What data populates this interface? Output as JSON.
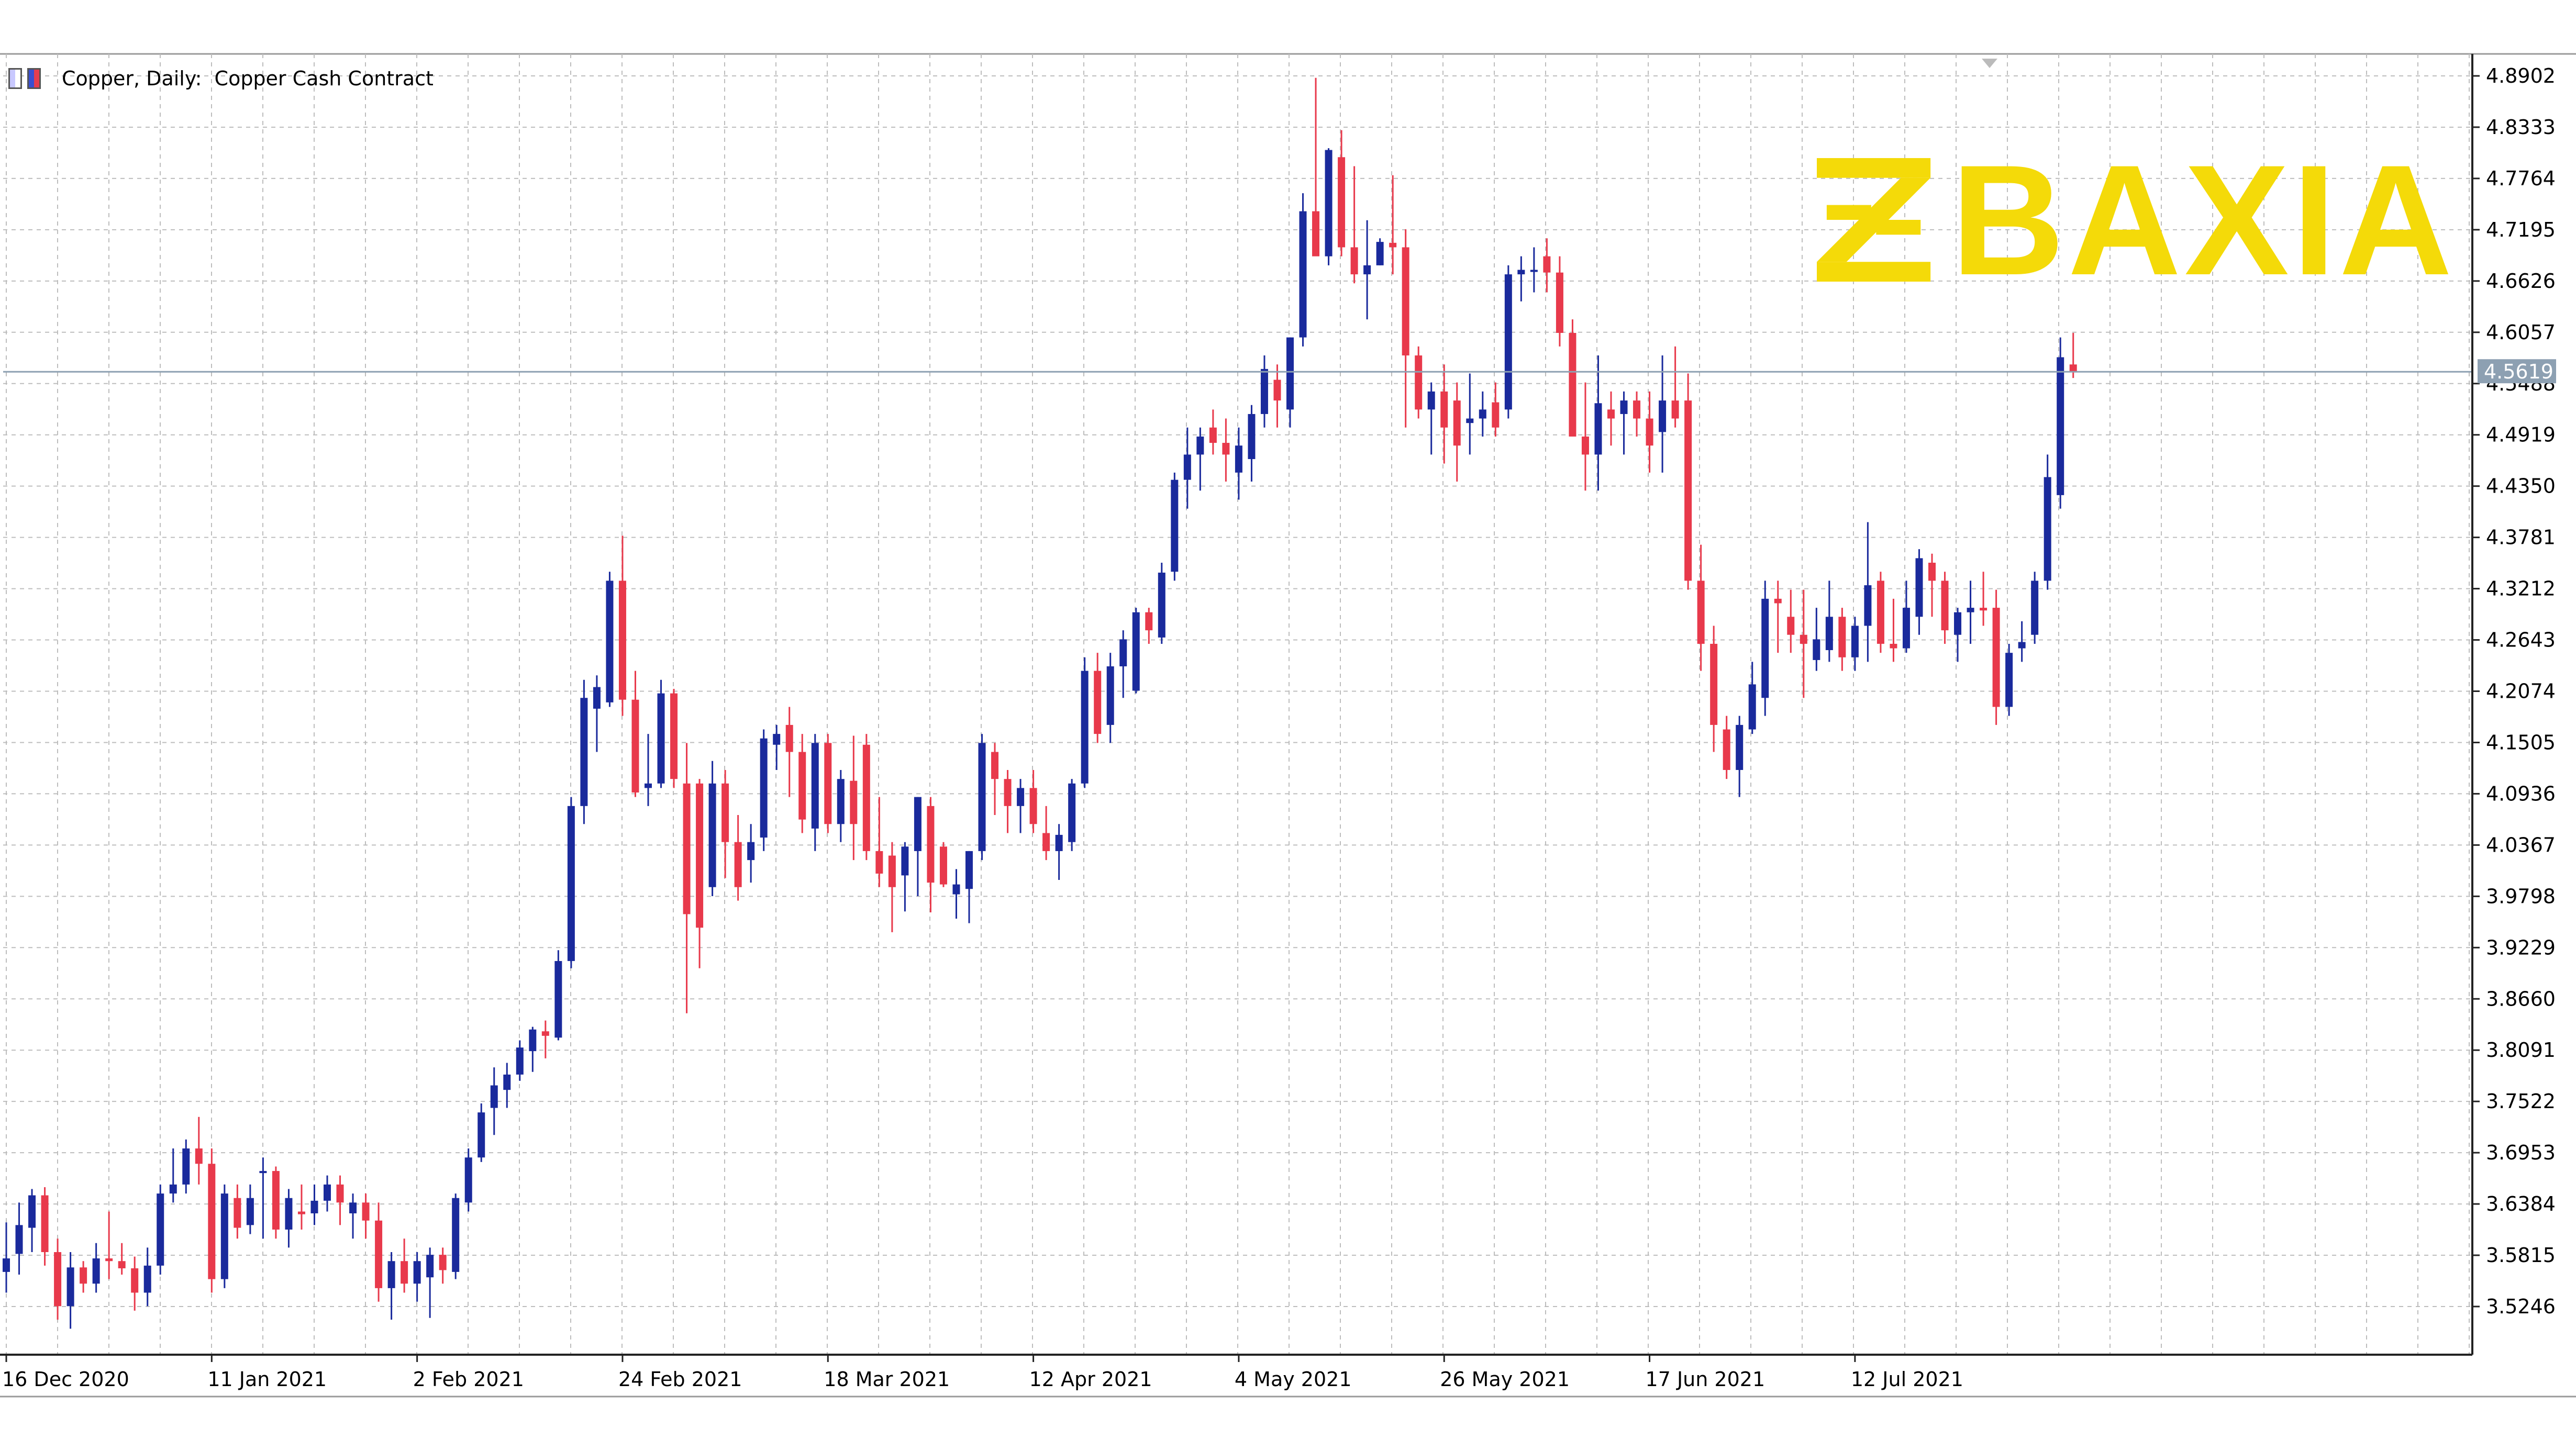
{
  "header": {
    "symbol_text": "Copper, Daily:  Copper Cash Contract"
  },
  "logo": {
    "text": "BAXIA",
    "color": "#f4da09"
  },
  "colors": {
    "bull": "#1a2a9c",
    "bear": "#e8394b",
    "grid": "#bdbdbd",
    "price_line": "#8da0b2",
    "price_label_bg": "#8da0b2"
  },
  "chart_data": {
    "type": "candlestick",
    "title": "Copper, Daily:  Copper Cash Contract",
    "y_ticks": [
      "4.8902",
      "4.8333",
      "4.7764",
      "4.7195",
      "4.6626",
      "4.6057",
      "4.5488",
      "4.4919",
      "4.4350",
      "4.3781",
      "4.3212",
      "4.2643",
      "4.2074",
      "4.1505",
      "4.0936",
      "4.0367",
      "3.9798",
      "3.9229",
      "3.8660",
      "3.8091",
      "3.7522",
      "3.6953",
      "3.6384",
      "3.5815",
      "3.5246"
    ],
    "ylim": [
      3.4828,
      4.8902
    ],
    "current_price": "4.5619",
    "x_ticks": [
      "16 Dec 2020",
      "11 Jan 2021",
      "2 Feb 2021",
      "24 Feb 2021",
      "18 Mar 2021",
      "12 Apr 2021",
      "4 May 2021",
      "26 May 2021",
      "17 Jun 2021",
      "12 Jul 2021"
    ],
    "x_tick_bar_index": [
      0,
      16,
      32,
      48,
      64,
      80,
      96,
      112,
      128,
      144
    ],
    "grid": true,
    "candles": [
      {
        "o": 3.563,
        "h": 3.618,
        "l": 3.54,
        "c": 3.578
      },
      {
        "o": 3.583,
        "h": 3.64,
        "l": 3.56,
        "c": 3.615
      },
      {
        "o": 3.612,
        "h": 3.655,
        "l": 3.585,
        "c": 3.648
      },
      {
        "o": 3.648,
        "h": 3.657,
        "l": 3.57,
        "c": 3.585
      },
      {
        "o": 3.585,
        "h": 3.6,
        "l": 3.51,
        "c": 3.525
      },
      {
        "o": 3.525,
        "h": 3.585,
        "l": 3.5,
        "c": 3.568
      },
      {
        "o": 3.568,
        "h": 3.575,
        "l": 3.54,
        "c": 3.55
      },
      {
        "o": 3.55,
        "h": 3.595,
        "l": 3.54,
        "c": 3.578
      },
      {
        "o": 3.578,
        "h": 3.63,
        "l": 3.555,
        "c": 3.575
      },
      {
        "o": 3.575,
        "h": 3.595,
        "l": 3.56,
        "c": 3.567
      },
      {
        "o": 3.567,
        "h": 3.58,
        "l": 3.52,
        "c": 3.54
      },
      {
        "o": 3.54,
        "h": 3.59,
        "l": 3.525,
        "c": 3.57
      },
      {
        "o": 3.57,
        "h": 3.66,
        "l": 3.56,
        "c": 3.65
      },
      {
        "o": 3.65,
        "h": 3.7,
        "l": 3.64,
        "c": 3.66
      },
      {
        "o": 3.66,
        "h": 3.71,
        "l": 3.65,
        "c": 3.7
      },
      {
        "o": 3.7,
        "h": 3.735,
        "l": 3.66,
        "c": 3.683
      },
      {
        "o": 3.683,
        "h": 3.7,
        "l": 3.54,
        "c": 3.555
      },
      {
        "o": 3.555,
        "h": 3.66,
        "l": 3.545,
        "c": 3.65
      },
      {
        "o": 3.645,
        "h": 3.66,
        "l": 3.6,
        "c": 3.612
      },
      {
        "o": 3.615,
        "h": 3.66,
        "l": 3.605,
        "c": 3.645
      },
      {
        "o": 3.675,
        "h": 3.69,
        "l": 3.6,
        "c": 3.675
      },
      {
        "o": 3.675,
        "h": 3.68,
        "l": 3.6,
        "c": 3.61
      },
      {
        "o": 3.61,
        "h": 3.655,
        "l": 3.59,
        "c": 3.645
      },
      {
        "o": 3.63,
        "h": 3.66,
        "l": 3.61,
        "c": 3.627
      },
      {
        "o": 3.628,
        "h": 3.66,
        "l": 3.615,
        "c": 3.642
      },
      {
        "o": 3.642,
        "h": 3.67,
        "l": 3.63,
        "c": 3.66
      },
      {
        "o": 3.66,
        "h": 3.67,
        "l": 3.615,
        "c": 3.64
      },
      {
        "o": 3.628,
        "h": 3.65,
        "l": 3.6,
        "c": 3.64
      },
      {
        "o": 3.64,
        "h": 3.65,
        "l": 3.6,
        "c": 3.62
      },
      {
        "o": 3.62,
        "h": 3.64,
        "l": 3.53,
        "c": 3.545
      },
      {
        "o": 3.545,
        "h": 3.585,
        "l": 3.51,
        "c": 3.575
      },
      {
        "o": 3.575,
        "h": 3.6,
        "l": 3.54,
        "c": 3.55
      },
      {
        "o": 3.55,
        "h": 3.585,
        "l": 3.53,
        "c": 3.575
      },
      {
        "o": 3.557,
        "h": 3.59,
        "l": 3.512,
        "c": 3.582
      },
      {
        "o": 3.582,
        "h": 3.59,
        "l": 3.55,
        "c": 3.565
      },
      {
        "o": 3.563,
        "h": 3.65,
        "l": 3.555,
        "c": 3.645
      },
      {
        "o": 3.64,
        "h": 3.7,
        "l": 3.63,
        "c": 3.69
      },
      {
        "o": 3.69,
        "h": 3.75,
        "l": 3.685,
        "c": 3.74
      },
      {
        "o": 3.745,
        "h": 3.79,
        "l": 3.715,
        "c": 3.77
      },
      {
        "o": 3.765,
        "h": 3.795,
        "l": 3.745,
        "c": 3.782
      },
      {
        "o": 3.782,
        "h": 3.82,
        "l": 3.775,
        "c": 3.812
      },
      {
        "o": 3.808,
        "h": 3.835,
        "l": 3.785,
        "c": 3.832
      },
      {
        "o": 3.83,
        "h": 3.842,
        "l": 3.8,
        "c": 3.825
      },
      {
        "o": 3.823,
        "h": 3.92,
        "l": 3.82,
        "c": 3.908
      },
      {
        "o": 3.908,
        "h": 4.09,
        "l": 3.9,
        "c": 4.08
      },
      {
        "o": 4.08,
        "h": 4.22,
        "l": 4.06,
        "c": 4.2
      },
      {
        "o": 4.188,
        "h": 4.225,
        "l": 4.14,
        "c": 4.212
      },
      {
        "o": 4.195,
        "h": 4.34,
        "l": 4.19,
        "c": 4.33
      },
      {
        "o": 4.33,
        "h": 4.38,
        "l": 4.18,
        "c": 4.198
      },
      {
        "o": 4.198,
        "h": 4.23,
        "l": 4.09,
        "c": 4.095
      },
      {
        "o": 4.1,
        "h": 4.16,
        "l": 4.08,
        "c": 4.105
      },
      {
        "o": 4.105,
        "h": 4.22,
        "l": 4.1,
        "c": 4.205
      },
      {
        "o": 4.205,
        "h": 4.21,
        "l": 4.1,
        "c": 4.11
      },
      {
        "o": 4.105,
        "h": 4.15,
        "l": 3.85,
        "c": 3.96
      },
      {
        "o": 4.105,
        "h": 4.11,
        "l": 3.9,
        "c": 3.945
      },
      {
        "o": 3.99,
        "h": 4.13,
        "l": 3.98,
        "c": 4.105
      },
      {
        "o": 4.105,
        "h": 4.12,
        "l": 4.0,
        "c": 4.04
      },
      {
        "o": 4.04,
        "h": 4.07,
        "l": 3.975,
        "c": 3.99
      },
      {
        "o": 4.02,
        "h": 4.06,
        "l": 3.995,
        "c": 4.04
      },
      {
        "o": 4.045,
        "h": 4.165,
        "l": 4.03,
        "c": 4.155
      },
      {
        "o": 4.148,
        "h": 4.17,
        "l": 4.12,
        "c": 4.16
      },
      {
        "o": 4.17,
        "h": 4.19,
        "l": 4.09,
        "c": 4.14
      },
      {
        "o": 4.14,
        "h": 4.16,
        "l": 4.05,
        "c": 4.065
      },
      {
        "o": 4.055,
        "h": 4.16,
        "l": 4.03,
        "c": 4.15
      },
      {
        "o": 4.15,
        "h": 4.16,
        "l": 4.05,
        "c": 4.06
      },
      {
        "o": 4.06,
        "h": 4.12,
        "l": 4.04,
        "c": 4.11
      },
      {
        "o": 4.108,
        "h": 4.158,
        "l": 4.02,
        "c": 4.06
      },
      {
        "o": 4.148,
        "h": 4.16,
        "l": 4.02,
        "c": 4.03
      },
      {
        "o": 4.03,
        "h": 4.09,
        "l": 3.99,
        "c": 4.005
      },
      {
        "o": 4.025,
        "h": 4.04,
        "l": 3.94,
        "c": 3.99
      },
      {
        "o": 4.003,
        "h": 4.04,
        "l": 3.963,
        "c": 4.035
      },
      {
        "o": 4.03,
        "h": 4.09,
        "l": 3.98,
        "c": 4.09
      },
      {
        "o": 4.08,
        "h": 4.09,
        "l": 3.962,
        "c": 3.995
      },
      {
        "o": 4.035,
        "h": 4.04,
        "l": 3.99,
        "c": 3.993
      },
      {
        "o": 3.982,
        "h": 4.01,
        "l": 3.955,
        "c": 3.993
      },
      {
        "o": 3.988,
        "h": 4.03,
        "l": 3.95,
        "c": 4.03
      },
      {
        "o": 4.03,
        "h": 4.16,
        "l": 4.02,
        "c": 4.15
      },
      {
        "o": 4.14,
        "h": 4.15,
        "l": 4.07,
        "c": 4.11
      },
      {
        "o": 4.11,
        "h": 4.12,
        "l": 4.05,
        "c": 4.08
      },
      {
        "o": 4.08,
        "h": 4.11,
        "l": 4.05,
        "c": 4.1
      },
      {
        "o": 4.1,
        "h": 4.12,
        "l": 4.05,
        "c": 4.06
      },
      {
        "o": 4.05,
        "h": 4.08,
        "l": 4.02,
        "c": 4.03
      },
      {
        "o": 4.03,
        "h": 4.06,
        "l": 3.998,
        "c": 4.048
      },
      {
        "o": 4.04,
        "h": 4.11,
        "l": 4.03,
        "c": 4.105
      },
      {
        "o": 4.105,
        "h": 4.245,
        "l": 4.1,
        "c": 4.23
      },
      {
        "o": 4.23,
        "h": 4.25,
        "l": 4.15,
        "c": 4.16
      },
      {
        "o": 4.17,
        "h": 4.25,
        "l": 4.15,
        "c": 4.235
      },
      {
        "o": 4.235,
        "h": 4.275,
        "l": 4.2,
        "c": 4.265
      },
      {
        "o": 4.208,
        "h": 4.3,
        "l": 4.205,
        "c": 4.295
      },
      {
        "o": 4.295,
        "h": 4.3,
        "l": 4.26,
        "c": 4.275
      },
      {
        "o": 4.267,
        "h": 4.35,
        "l": 4.26,
        "c": 4.339
      },
      {
        "o": 4.34,
        "h": 4.45,
        "l": 4.33,
        "c": 4.442
      },
      {
        "o": 4.442,
        "h": 4.5,
        "l": 4.41,
        "c": 4.47
      },
      {
        "o": 4.47,
        "h": 4.5,
        "l": 4.43,
        "c": 4.49
      },
      {
        "o": 4.5,
        "h": 4.52,
        "l": 4.47,
        "c": 4.483
      },
      {
        "o": 4.483,
        "h": 4.51,
        "l": 4.44,
        "c": 4.47
      },
      {
        "o": 4.45,
        "h": 4.5,
        "l": 4.42,
        "c": 4.48
      },
      {
        "o": 4.465,
        "h": 4.525,
        "l": 4.44,
        "c": 4.515
      },
      {
        "o": 4.515,
        "h": 4.58,
        "l": 4.5,
        "c": 4.565
      },
      {
        "o": 4.553,
        "h": 4.57,
        "l": 4.5,
        "c": 4.53
      },
      {
        "o": 4.52,
        "h": 4.6,
        "l": 4.5,
        "c": 4.6
      },
      {
        "o": 4.6,
        "h": 4.76,
        "l": 4.59,
        "c": 4.74
      },
      {
        "o": 4.74,
        "h": 4.888,
        "l": 4.7,
        "c": 4.69
      },
      {
        "o": 4.69,
        "h": 4.81,
        "l": 4.68,
        "c": 4.808
      },
      {
        "o": 4.8,
        "h": 4.83,
        "l": 4.69,
        "c": 4.7
      },
      {
        "o": 4.7,
        "h": 4.79,
        "l": 4.66,
        "c": 4.67
      },
      {
        "o": 4.67,
        "h": 4.73,
        "l": 4.62,
        "c": 4.68
      },
      {
        "o": 4.68,
        "h": 4.71,
        "l": 4.68,
        "c": 4.706
      },
      {
        "o": 4.705,
        "h": 4.78,
        "l": 4.67,
        "c": 4.7
      },
      {
        "o": 4.7,
        "h": 4.72,
        "l": 4.5,
        "c": 4.58
      },
      {
        "o": 4.58,
        "h": 4.59,
        "l": 4.51,
        "c": 4.52
      },
      {
        "o": 4.52,
        "h": 4.55,
        "l": 4.47,
        "c": 4.54
      },
      {
        "o": 4.54,
        "h": 4.57,
        "l": 4.46,
        "c": 4.5
      },
      {
        "o": 4.53,
        "h": 4.55,
        "l": 4.44,
        "c": 4.48
      },
      {
        "o": 4.505,
        "h": 4.56,
        "l": 4.47,
        "c": 4.51
      },
      {
        "o": 4.51,
        "h": 4.54,
        "l": 4.49,
        "c": 4.52
      },
      {
        "o": 4.528,
        "h": 4.55,
        "l": 4.49,
        "c": 4.5
      },
      {
        "o": 4.52,
        "h": 4.68,
        "l": 4.51,
        "c": 4.67
      },
      {
        "o": 4.67,
        "h": 4.69,
        "l": 4.64,
        "c": 4.675
      },
      {
        "o": 4.675,
        "h": 4.7,
        "l": 4.65,
        "c": 4.675
      },
      {
        "o": 4.69,
        "h": 4.71,
        "l": 4.65,
        "c": 4.672
      },
      {
        "o": 4.672,
        "h": 4.69,
        "l": 4.59,
        "c": 4.605
      },
      {
        "o": 4.605,
        "h": 4.62,
        "l": 4.49,
        "c": 4.49
      },
      {
        "o": 4.49,
        "h": 4.55,
        "l": 4.43,
        "c": 4.47
      },
      {
        "o": 4.47,
        "h": 4.58,
        "l": 4.43,
        "c": 4.527
      },
      {
        "o": 4.52,
        "h": 4.54,
        "l": 4.48,
        "c": 4.51
      },
      {
        "o": 4.515,
        "h": 4.54,
        "l": 4.47,
        "c": 4.53
      },
      {
        "o": 4.53,
        "h": 4.54,
        "l": 4.49,
        "c": 4.51
      },
      {
        "o": 4.51,
        "h": 4.54,
        "l": 4.45,
        "c": 4.48
      },
      {
        "o": 4.495,
        "h": 4.58,
        "l": 4.45,
        "c": 4.53
      },
      {
        "o": 4.53,
        "h": 4.59,
        "l": 4.5,
        "c": 4.51
      },
      {
        "o": 4.53,
        "h": 4.56,
        "l": 4.32,
        "c": 4.33
      },
      {
        "o": 4.33,
        "h": 4.37,
        "l": 4.23,
        "c": 4.26
      },
      {
        "o": 4.26,
        "h": 4.28,
        "l": 4.14,
        "c": 4.17
      },
      {
        "o": 4.165,
        "h": 4.18,
        "l": 4.11,
        "c": 4.12
      },
      {
        "o": 4.12,
        "h": 4.18,
        "l": 4.09,
        "c": 4.17
      },
      {
        "o": 4.165,
        "h": 4.24,
        "l": 4.16,
        "c": 4.215
      },
      {
        "o": 4.2,
        "h": 4.33,
        "l": 4.18,
        "c": 4.31
      },
      {
        "o": 4.31,
        "h": 4.33,
        "l": 4.25,
        "c": 4.305
      },
      {
        "o": 4.29,
        "h": 4.32,
        "l": 4.25,
        "c": 4.27
      },
      {
        "o": 4.27,
        "h": 4.32,
        "l": 4.2,
        "c": 4.26
      },
      {
        "o": 4.242,
        "h": 4.3,
        "l": 4.23,
        "c": 4.265
      },
      {
        "o": 4.253,
        "h": 4.33,
        "l": 4.24,
        "c": 4.29
      },
      {
        "o": 4.29,
        "h": 4.3,
        "l": 4.23,
        "c": 4.245
      },
      {
        "o": 4.245,
        "h": 4.29,
        "l": 4.23,
        "c": 4.28
      },
      {
        "o": 4.28,
        "h": 4.395,
        "l": 4.24,
        "c": 4.325
      },
      {
        "o": 4.33,
        "h": 4.34,
        "l": 4.25,
        "c": 4.26
      },
      {
        "o": 4.26,
        "h": 4.31,
        "l": 4.24,
        "c": 4.255
      },
      {
        "o": 4.255,
        "h": 4.33,
        "l": 4.25,
        "c": 4.3
      },
      {
        "o": 4.29,
        "h": 4.365,
        "l": 4.27,
        "c": 4.355
      },
      {
        "o": 4.35,
        "h": 4.36,
        "l": 4.29,
        "c": 4.33
      },
      {
        "o": 4.33,
        "h": 4.34,
        "l": 4.26,
        "c": 4.275
      },
      {
        "o": 4.27,
        "h": 4.3,
        "l": 4.24,
        "c": 4.295
      },
      {
        "o": 4.295,
        "h": 4.33,
        "l": 4.26,
        "c": 4.3
      },
      {
        "o": 4.3,
        "h": 4.34,
        "l": 4.28,
        "c": 4.297
      },
      {
        "o": 4.3,
        "h": 4.32,
        "l": 4.17,
        "c": 4.19
      },
      {
        "o": 4.19,
        "h": 4.26,
        "l": 4.18,
        "c": 4.25
      },
      {
        "o": 4.255,
        "h": 4.285,
        "l": 4.24,
        "c": 4.262
      },
      {
        "o": 4.27,
        "h": 4.34,
        "l": 4.26,
        "c": 4.33
      },
      {
        "o": 4.33,
        "h": 4.47,
        "l": 4.32,
        "c": 4.445
      },
      {
        "o": 4.425,
        "h": 4.6,
        "l": 4.41,
        "c": 4.578
      },
      {
        "o": 4.57,
        "h": 4.605,
        "l": 4.555,
        "c": 4.562
      }
    ]
  }
}
